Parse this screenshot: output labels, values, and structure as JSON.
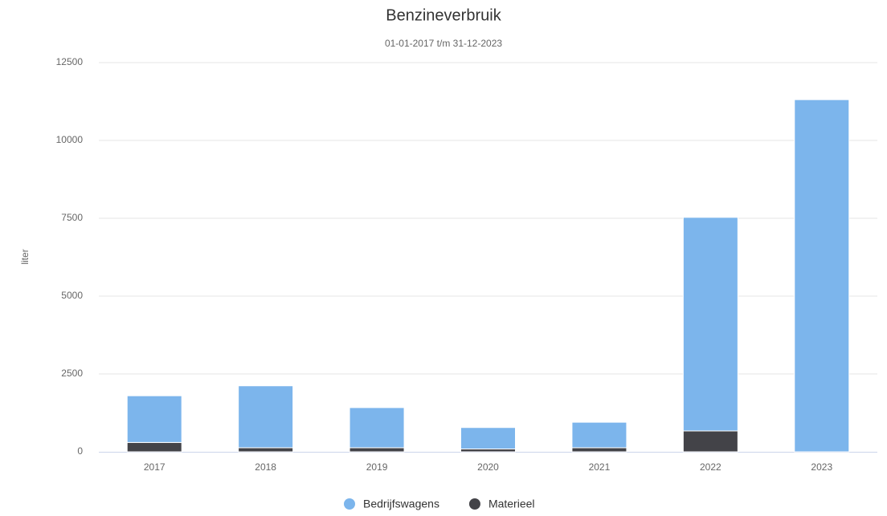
{
  "chart_data": {
    "type": "bar",
    "stacked": true,
    "title": "Benzineverbruik",
    "subtitle": "01-01-2017 t/m 31-12-2023",
    "y_label": "liter",
    "categories": [
      "2017",
      "2018",
      "2019",
      "2020",
      "2021",
      "2022",
      "2023"
    ],
    "series": [
      {
        "name": "Bedrijfswagens",
        "color": "#7cb5ec",
        "values": [
          1500,
          1990,
          1290,
          690,
          820,
          6860,
          11310
        ]
      },
      {
        "name": "Materieel",
        "color": "#434348",
        "values": [
          300,
          130,
          130,
          90,
          130,
          670,
          0
        ]
      }
    ],
    "ylim": [
      0,
      12500
    ],
    "yticks": [
      0,
      2500,
      5000,
      7500,
      10000,
      12500
    ],
    "grid": true,
    "legend": "bottom"
  }
}
